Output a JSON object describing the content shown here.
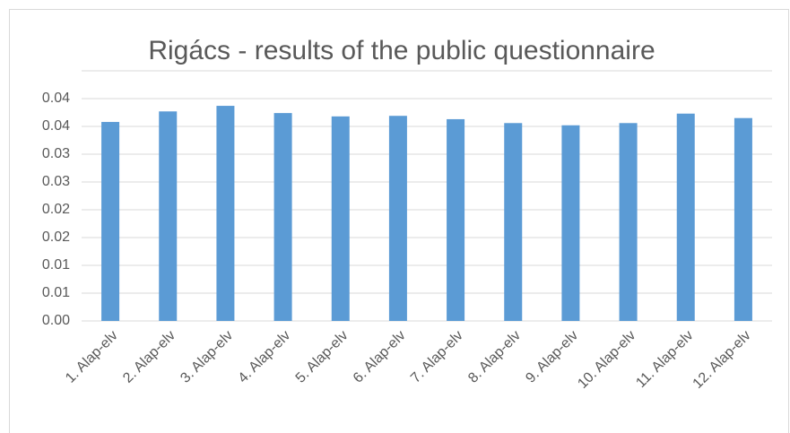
{
  "chart_data": {
    "type": "bar",
    "title": "Rigács - results of the public questionnaire",
    "categories": [
      "1. Alap-elv",
      "2. Alap-elv",
      "3. Alap-elv",
      "4. Alap-elv",
      "5. Alap-elv",
      "6. Alap-elv",
      "7. Alap-elv",
      "8. Alap-elv",
      "9. Alap-elv",
      "10. Alap-elv",
      "11. Alap-elv",
      "12. Alap-elv"
    ],
    "values": [
      0.0358,
      0.0377,
      0.0387,
      0.0374,
      0.0368,
      0.0369,
      0.0363,
      0.0356,
      0.0352,
      0.0356,
      0.0373,
      0.0365
    ],
    "color": "#5b9bd5",
    "ylim": [
      0,
      0.045
    ],
    "yticks": [
      {
        "value": 0,
        "label": "0.00"
      },
      {
        "value": 0.005,
        "label": "0.01"
      },
      {
        "value": 0.01,
        "label": "0.01"
      },
      {
        "value": 0.015,
        "label": "0.02"
      },
      {
        "value": 0.02,
        "label": "0.02"
      },
      {
        "value": 0.025,
        "label": "0.03"
      },
      {
        "value": 0.03,
        "label": "0.03"
      },
      {
        "value": 0.035,
        "label": "0.04"
      },
      {
        "value": 0.04,
        "label": "0.04"
      }
    ],
    "grid": true
  }
}
